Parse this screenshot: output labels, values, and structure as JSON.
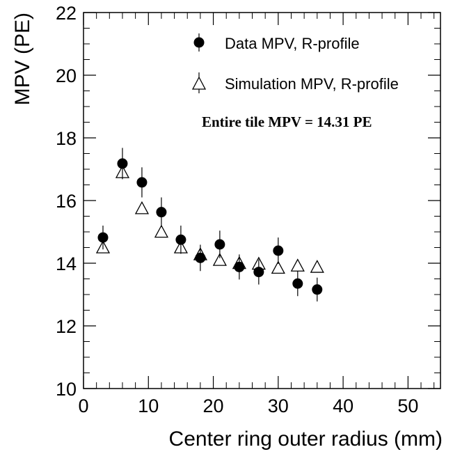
{
  "chart_data": {
    "type": "scatter",
    "title": "",
    "xlabel": "Center ring outer radius (mm)",
    "ylabel": "MPV (PE)",
    "xlim": [
      0,
      55
    ],
    "ylim": [
      10,
      22
    ],
    "x_major_ticks": [
      0,
      10,
      20,
      30,
      40,
      50
    ],
    "y_major_ticks": [
      10,
      12,
      14,
      16,
      18,
      20,
      22
    ],
    "grid": false,
    "legend_placement": "top-right",
    "series": [
      {
        "name": "Data MPV, R-profile",
        "marker": "filled-circle",
        "color": "#000000",
        "x": [
          3,
          6,
          9,
          12,
          15,
          18,
          21,
          24,
          27,
          30,
          33,
          36
        ],
        "y": [
          14.82,
          17.18,
          16.58,
          15.63,
          14.75,
          14.17,
          14.6,
          13.88,
          13.72,
          14.4,
          13.35,
          13.16
        ],
        "err": [
          0.38,
          0.5,
          0.48,
          0.47,
          0.45,
          0.42,
          0.44,
          0.4,
          0.4,
          0.42,
          0.4,
          0.38
        ]
      },
      {
        "name": "Simulation MPV, R-profile",
        "marker": "open-triangle",
        "color": "#000000",
        "x": [
          3,
          6,
          9,
          12,
          15,
          18,
          21,
          24,
          27,
          30,
          33,
          36
        ],
        "y": [
          14.5,
          16.9,
          15.75,
          15.0,
          14.5,
          14.28,
          14.1,
          14.0,
          13.98,
          13.85,
          13.92,
          13.88
        ],
        "err": [
          0.15,
          0.18,
          0.17,
          0.16,
          0.15,
          0.14,
          0.14,
          0.13,
          0.13,
          0.13,
          0.13,
          0.13
        ]
      }
    ],
    "annotation": "Entire tile MPV = 14.31 PE"
  }
}
